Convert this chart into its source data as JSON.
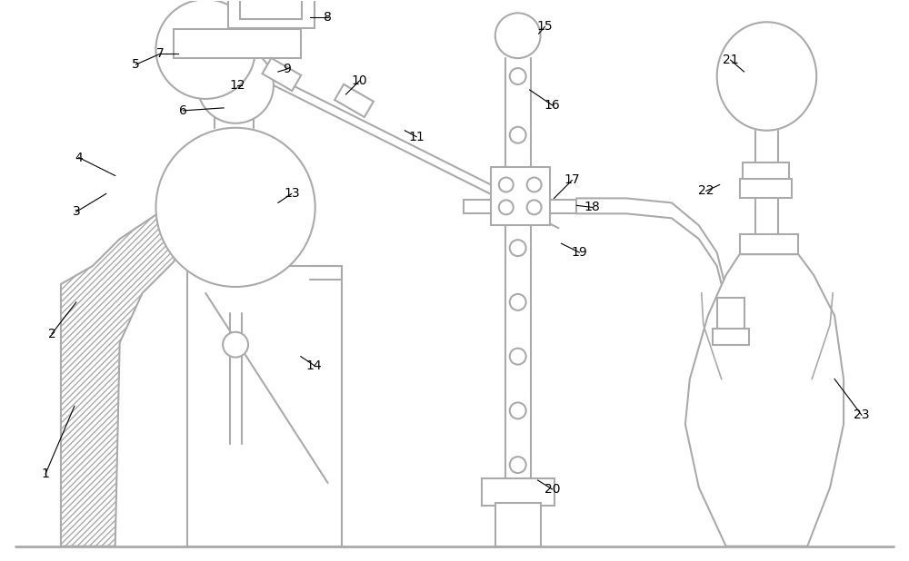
{
  "bg_color": "#ffffff",
  "line_color": "#aaaaaa",
  "line_width": 1.5,
  "fig_width": 10.0,
  "fig_height": 6.18
}
